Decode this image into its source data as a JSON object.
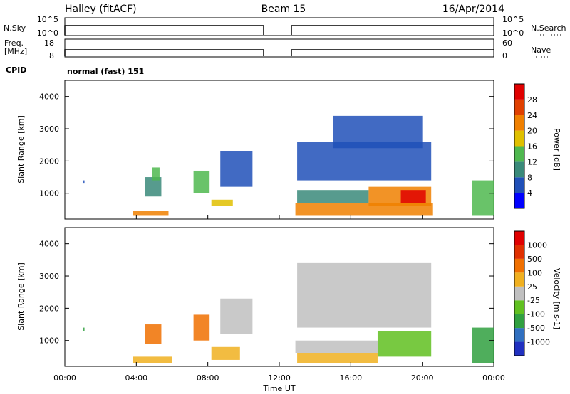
{
  "header": {
    "station": "Halley (fitACF)",
    "beam": "Beam 15",
    "date": "16/Apr/2014"
  },
  "panels": {
    "nsky": {
      "left_label": "N.Sky",
      "right_label": "N.Search",
      "left_ticks": [
        "10^5",
        "10^0"
      ],
      "right_ticks": [
        "10^5",
        "10^0"
      ]
    },
    "freq": {
      "left_label_1": "Freq.",
      "left_label_2": "[MHz]",
      "right_label": "Nave",
      "left_ticks": [
        "18",
        "8"
      ],
      "right_ticks": [
        "60",
        "0"
      ]
    },
    "cpid": {
      "left_label": "CPID",
      "program": "normal (fast) 151"
    }
  },
  "colors": {
    "power": [
      "#0000ff",
      "#2050b8",
      "#3a8a7a",
      "#4fb84f",
      "#e0c000",
      "#f08000",
      "#e04000",
      "#e00000"
    ],
    "velocity": [
      "#2030c0",
      "#3070c0",
      "#30a040",
      "#60c020",
      "#c0c0c0",
      "#f0b020",
      "#f07000",
      "#e03000",
      "#e00000"
    ]
  },
  "chart_data": [
    {
      "type": "heatmap",
      "name_ref": "power",
      "ylabel": "Slant Range [km]",
      "ylim": [
        200,
        4500
      ],
      "yticks": [
        1000,
        2000,
        3000,
        4000
      ],
      "xlim": [
        0,
        24
      ],
      "colorbar_label": "Power [dB]",
      "colorbar_ticks": [
        "4",
        "8",
        "12",
        "16",
        "20",
        "24",
        "28"
      ],
      "colorbar_range": [
        0,
        32
      ],
      "data_gap_hours": [
        11.0,
        13.0
      ],
      "echo_regions": [
        {
          "t0": 1.0,
          "t1": 1.1,
          "r0": 1300,
          "r1": 1400,
          "level": 1
        },
        {
          "t0": 3.8,
          "t1": 5.8,
          "r0": 300,
          "r1": 450,
          "level": 5
        },
        {
          "t0": 4.5,
          "t1": 5.4,
          "r0": 900,
          "r1": 1500,
          "level": 2
        },
        {
          "t0": 4.9,
          "t1": 5.3,
          "r0": 1400,
          "r1": 1800,
          "level": 3
        },
        {
          "t0": 7.2,
          "t1": 8.1,
          "r0": 1000,
          "r1": 1700,
          "level": 3
        },
        {
          "t0": 8.2,
          "t1": 9.4,
          "r0": 600,
          "r1": 800,
          "level": 4
        },
        {
          "t0": 8.7,
          "t1": 10.5,
          "r0": 1200,
          "r1": 2300,
          "level": 1
        },
        {
          "t0": 12.9,
          "t1": 20.6,
          "r0": 300,
          "r1": 700,
          "level": 5
        },
        {
          "t0": 13.0,
          "t1": 17.0,
          "r0": 700,
          "r1": 1100,
          "level": 2
        },
        {
          "t0": 17.0,
          "t1": 20.5,
          "r0": 600,
          "r1": 1200,
          "level": 5
        },
        {
          "t0": 18.8,
          "t1": 20.2,
          "r0": 700,
          "r1": 1100,
          "level": 7
        },
        {
          "t0": 13.0,
          "t1": 20.5,
          "r0": 1400,
          "r1": 2600,
          "level": 1
        },
        {
          "t0": 15.0,
          "t1": 20.0,
          "r0": 2400,
          "r1": 3400,
          "level": 1
        },
        {
          "t0": 22.8,
          "t1": 24.0,
          "r0": 300,
          "r1": 1400,
          "level": 3
        }
      ]
    },
    {
      "type": "heatmap",
      "name_ref": "velocity",
      "ylabel": "Slant Range [km]",
      "ylim": [
        200,
        4500
      ],
      "yticks": [
        1000,
        2000,
        3000,
        4000
      ],
      "xlabel": "Time UT",
      "xlim": [
        0,
        24
      ],
      "xticks": [
        "00:00",
        "04:00",
        "08:00",
        "12:00",
        "16:00",
        "20:00",
        "00:00"
      ],
      "colorbar_label": "Velocity [m s-1]",
      "colorbar_ticks": [
        "-1000",
        "-500",
        "-100",
        "-25",
        "25",
        "100",
        "500",
        "1000"
      ],
      "data_gap_hours": [
        11.0,
        13.0
      ],
      "echo_regions": [
        {
          "t0": 1.0,
          "t1": 1.1,
          "r0": 1300,
          "r1": 1400,
          "level": 2
        },
        {
          "t0": 3.8,
          "t1": 6.0,
          "r0": 300,
          "r1": 500,
          "level": 5
        },
        {
          "t0": 4.5,
          "t1": 5.4,
          "r0": 900,
          "r1": 1500,
          "level": 6
        },
        {
          "t0": 7.2,
          "t1": 8.1,
          "r0": 1000,
          "r1": 1800,
          "level": 6
        },
        {
          "t0": 8.2,
          "t1": 9.8,
          "r0": 400,
          "r1": 800,
          "level": 5
        },
        {
          "t0": 8.7,
          "t1": 10.5,
          "r0": 1200,
          "r1": 2300,
          "level": 4
        },
        {
          "t0": 12.9,
          "t1": 17.5,
          "r0": 600,
          "r1": 1000,
          "level": 4
        },
        {
          "t0": 13.0,
          "t1": 17.5,
          "r0": 300,
          "r1": 600,
          "level": 5
        },
        {
          "t0": 17.5,
          "t1": 20.5,
          "r0": 500,
          "r1": 1300,
          "level": 3
        },
        {
          "t0": 13.0,
          "t1": 20.5,
          "r0": 1400,
          "r1": 3400,
          "level": 4
        },
        {
          "t0": 22.8,
          "t1": 24.0,
          "r0": 300,
          "r1": 1400,
          "level": 2
        }
      ]
    }
  ]
}
